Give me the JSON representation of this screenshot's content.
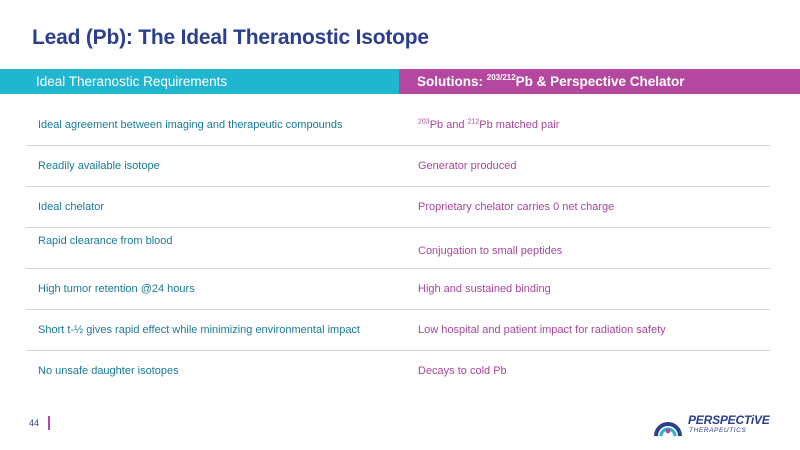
{
  "slide": {
    "title": "Lead (Pb): The Ideal Theranostic Isotope",
    "page_number": "44"
  },
  "header": {
    "left": "Ideal Theranostic Requirements",
    "right_prefix": "Solutions: ",
    "right_sup": "203/212",
    "right_suffix": "Pb & Perspective Chelator"
  },
  "rows": [
    {
      "requirement": "Ideal agreement between imaging and therapeutic compounds",
      "solution_sup1": "203",
      "solution_mid": "Pb and ",
      "solution_sup2": "212",
      "solution_end": "Pb matched pair"
    },
    {
      "requirement": "Readily available isotope",
      "solution": "Generator produced"
    },
    {
      "requirement": "Ideal chelator",
      "solution": "Proprietary chelator carries 0 net charge"
    },
    {
      "requirement": "Rapid clearance from blood",
      "solution": "Conjugation to small peptides"
    },
    {
      "requirement": "High tumor retention @24 hours",
      "solution": "High and sustained binding"
    },
    {
      "requirement": "Short t-½ gives rapid effect while minimizing environmental impact",
      "solution": "Low hospital and patient impact for radiation safety"
    },
    {
      "requirement": "No unsafe daughter isotopes",
      "solution": "Decays to cold Pb"
    }
  ],
  "logo": {
    "name": "PERSPECTiVE",
    "subtitle": "THERAPEUTICS"
  },
  "colors": {
    "title_blue": "#2b3f8f",
    "teal": "#20b6cf",
    "magenta": "#b4479e"
  }
}
